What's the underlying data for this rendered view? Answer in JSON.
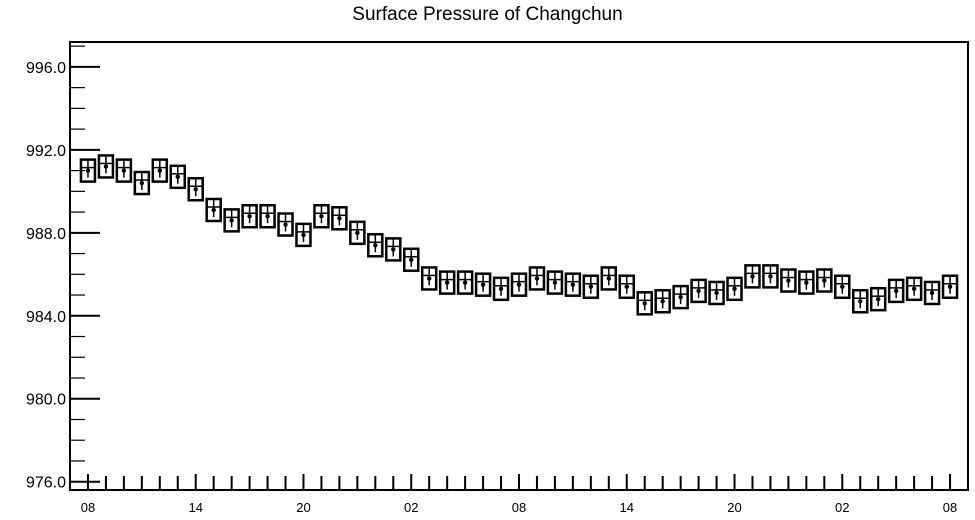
{
  "chart_data": {
    "type": "scatter",
    "title": "Surface Pressure of Changchun",
    "xlabel": "",
    "ylabel": "",
    "ylim": [
      975.6,
      997.2
    ],
    "yticks": [
      "996.0",
      "992.0",
      "988.0",
      "984.0",
      "980.0",
      "976.0"
    ],
    "ytick_values": [
      996.0,
      992.0,
      988.0,
      984.0,
      980.0,
      976.0
    ],
    "x_ticks": [
      {
        "hour": 0,
        "label": "08"
      },
      {
        "hour": 6,
        "label": "14"
      },
      {
        "hour": 12,
        "label": "20"
      },
      {
        "hour": 18,
        "label": "02"
      },
      {
        "hour": 24,
        "label": "08"
      },
      {
        "hour": 30,
        "label": "14"
      },
      {
        "hour": 36,
        "label": "20"
      },
      {
        "hour": 42,
        "label": "02"
      },
      {
        "hour": 48,
        "label": "08"
      }
    ],
    "xlim": [
      -1,
      49
    ],
    "grid": false,
    "marker": "boxed-cross",
    "series": [
      {
        "hours": [
          0,
          1,
          2,
          3,
          4,
          5,
          6,
          7,
          8,
          9,
          10,
          11,
          12,
          13,
          14,
          15,
          16,
          17,
          18,
          19,
          20,
          21,
          22,
          23,
          24,
          25,
          26,
          27,
          28,
          29,
          30,
          31,
          32,
          33,
          34,
          35,
          36,
          37,
          38,
          39,
          40,
          41,
          42,
          43,
          44,
          45,
          46,
          47,
          48
        ],
        "values": [
          991.0,
          991.2,
          991.0,
          990.4,
          991.0,
          990.7,
          990.1,
          989.1,
          988.6,
          988.8,
          988.8,
          988.4,
          987.9,
          988.8,
          988.7,
          988.0,
          987.4,
          987.2,
          986.7,
          985.8,
          985.6,
          985.6,
          985.5,
          985.3,
          985.5,
          985.8,
          985.6,
          985.5,
          985.4,
          985.8,
          985.4,
          984.6,
          984.7,
          984.9,
          985.2,
          985.1,
          985.3,
          985.9,
          985.9,
          985.7,
          985.6,
          985.7,
          985.4,
          984.7,
          984.8,
          985.2,
          985.3,
          985.1,
          985.4
        ]
      }
    ]
  }
}
